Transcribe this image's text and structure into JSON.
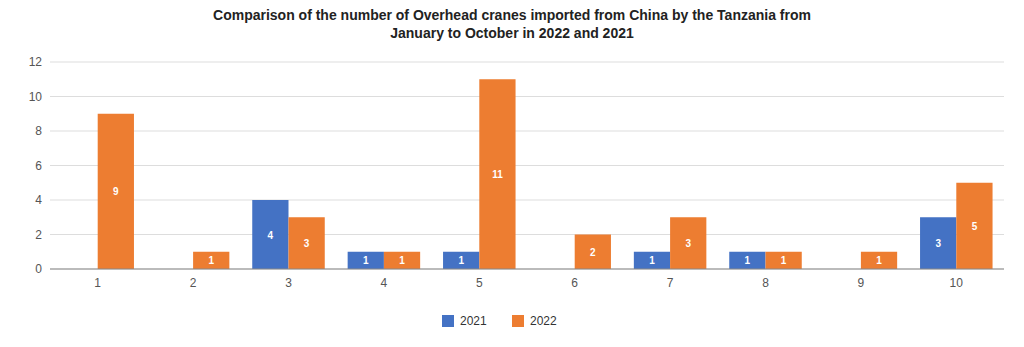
{
  "chart_data": {
    "type": "bar",
    "title": "Comparison of the number of Overhead cranes imported from China by the Tanzania from\nJanuary to October in 2022 and 2021",
    "categories": [
      1,
      2,
      3,
      4,
      5,
      6,
      7,
      8,
      9,
      10
    ],
    "series": [
      {
        "name": "2021",
        "color": "#4472C4",
        "values": [
          0,
          0,
          4,
          1,
          1,
          0,
          1,
          1,
          0,
          3
        ]
      },
      {
        "name": "2022",
        "color": "#ED7D31",
        "values": [
          9,
          1,
          3,
          1,
          11,
          2,
          3,
          1,
          1,
          5
        ]
      }
    ],
    "ylim": [
      0,
      12
    ],
    "yticks": [
      0,
      2,
      4,
      6,
      8,
      10,
      12
    ],
    "grid": true,
    "legend": "bottom",
    "data_labels": true
  }
}
